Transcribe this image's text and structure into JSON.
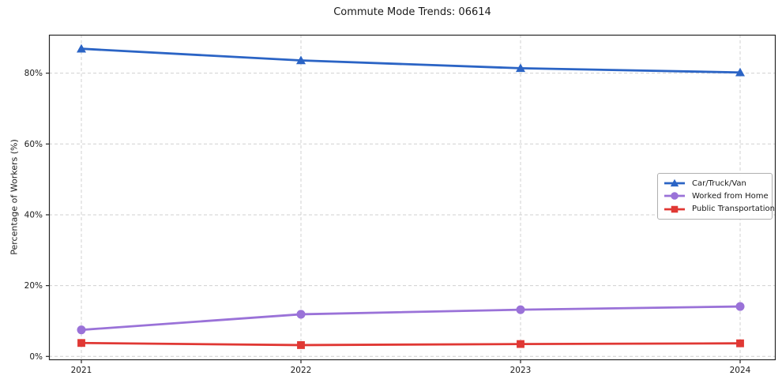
{
  "chart_data": {
    "type": "line",
    "title": "Commute Mode Trends: 06614",
    "xlabel": "",
    "ylabel": "Percentage of Workers (%)",
    "categories": [
      "2021",
      "2022",
      "2023",
      "2024"
    ],
    "y_ticks": [
      0,
      20,
      40,
      60,
      80
    ],
    "y_tick_labels": [
      "0%",
      "20%",
      "40%",
      "60%",
      "80%"
    ],
    "ylim": [
      -1.05,
      90.85
    ],
    "grid": true,
    "grid_style": "dashed",
    "legend_position": "center-right",
    "series": [
      {
        "name": "Car/Truck/Van",
        "color": "#2b64c5",
        "marker": "triangle",
        "values": [
          86.9,
          83.6,
          81.4,
          80.2
        ]
      },
      {
        "name": "Worked from Home",
        "color": "#9a72d8",
        "marker": "circle",
        "values": [
          7.5,
          11.9,
          13.2,
          14.1
        ]
      },
      {
        "name": "Public Transportation",
        "color": "#e03834",
        "marker": "square",
        "values": [
          3.8,
          3.2,
          3.5,
          3.7
        ]
      }
    ],
    "colors": {
      "grid": "#d0d0d0",
      "spine": "#262626",
      "tick_text": "#1a1a1a"
    }
  }
}
